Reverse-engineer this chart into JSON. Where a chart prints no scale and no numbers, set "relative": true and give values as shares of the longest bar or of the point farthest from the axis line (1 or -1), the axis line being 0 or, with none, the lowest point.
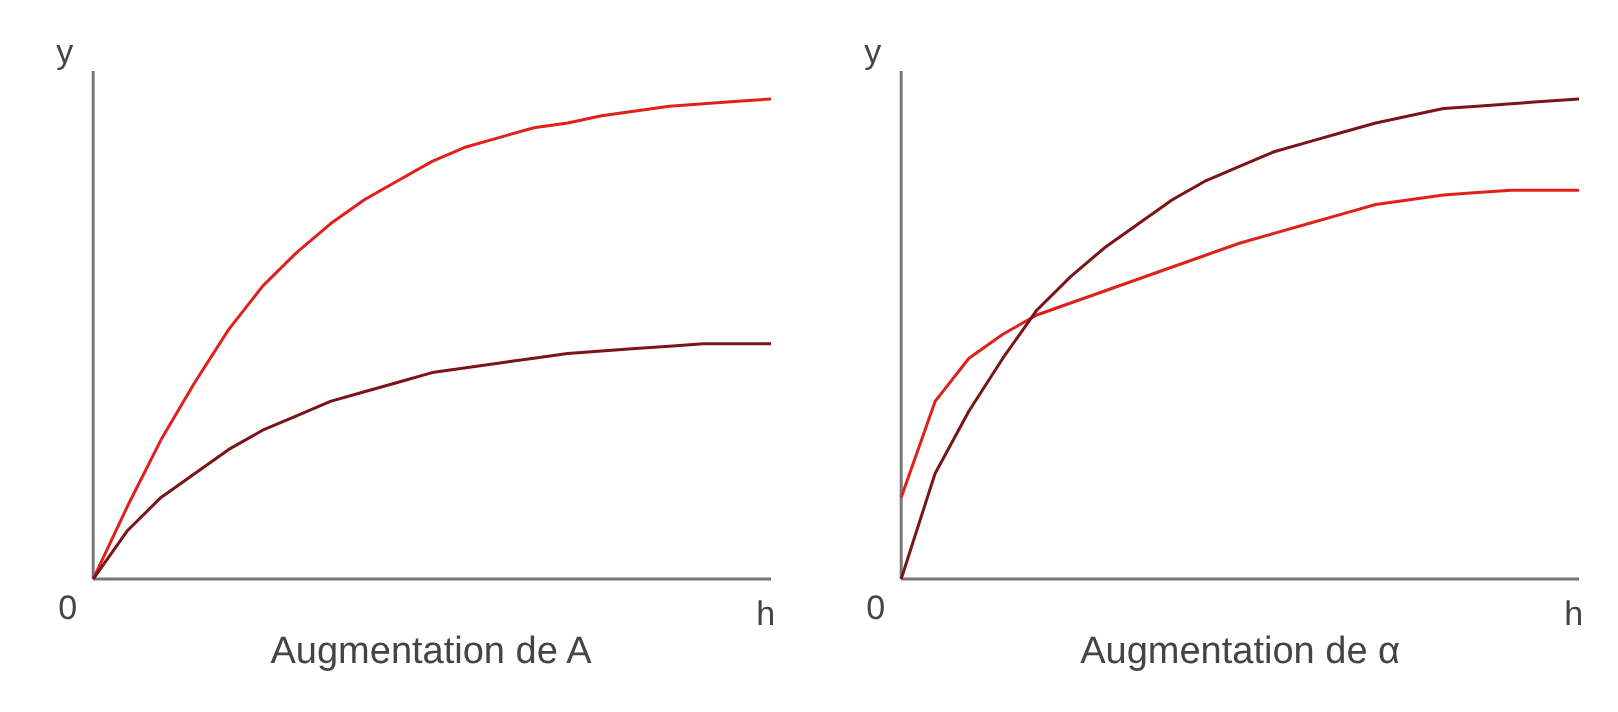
{
  "chart_data": [
    {
      "type": "line",
      "relative": true,
      "ylabel": "y",
      "xlabel": "Augmentation de A",
      "annotations": [
        "0",
        "h"
      ],
      "categories": [
        null,
        null,
        null,
        null,
        null,
        null,
        null,
        null,
        null,
        null,
        null,
        null,
        null,
        null,
        null,
        null,
        null,
        null,
        null,
        null,
        null
      ],
      "series": [
        {
          "color": "#e0201b",
          "values": [
            0,
            0.15,
            0.29,
            0.41,
            0.52,
            0.61,
            0.68,
            0.74,
            0.79,
            0.83,
            0.87,
            0.9,
            0.92,
            0.94,
            0.95,
            0.965,
            0.975,
            0.985,
            0.99,
            0.995,
            1.0
          ]
        },
        {
          "color": "#7a1418",
          "values": [
            0,
            0.1,
            0.17,
            0.22,
            0.27,
            0.31,
            0.34,
            0.37,
            0.39,
            0.41,
            0.43,
            0.44,
            0.45,
            0.46,
            0.47,
            0.475,
            0.48,
            0.485,
            0.49,
            0.49,
            0.49
          ]
        }
      ]
    },
    {
      "type": "line",
      "relative": true,
      "ylabel": "y",
      "xlabel": "Augmentation de α",
      "annotations": [
        "0",
        "h"
      ],
      "categories": [
        null,
        null,
        null,
        null,
        null,
        null,
        null,
        null,
        null,
        null,
        null,
        null,
        null,
        null,
        null,
        null,
        null,
        null,
        null,
        null,
        null
      ],
      "series": [
        {
          "color": "#e0201b",
          "values": [
            0.17,
            0.37,
            0.46,
            0.51,
            0.55,
            0.575,
            0.6,
            0.625,
            0.65,
            0.675,
            0.7,
            0.72,
            0.74,
            0.76,
            0.78,
            0.79,
            0.8,
            0.805,
            0.81,
            0.81,
            0.81
          ]
        },
        {
          "color": "#7a1418",
          "values": [
            0,
            0.22,
            0.35,
            0.46,
            0.56,
            0.63,
            0.69,
            0.74,
            0.79,
            0.83,
            0.86,
            0.89,
            0.91,
            0.93,
            0.95,
            0.965,
            0.98,
            0.985,
            0.99,
            0.995,
            1.0
          ]
        }
      ]
    }
  ]
}
